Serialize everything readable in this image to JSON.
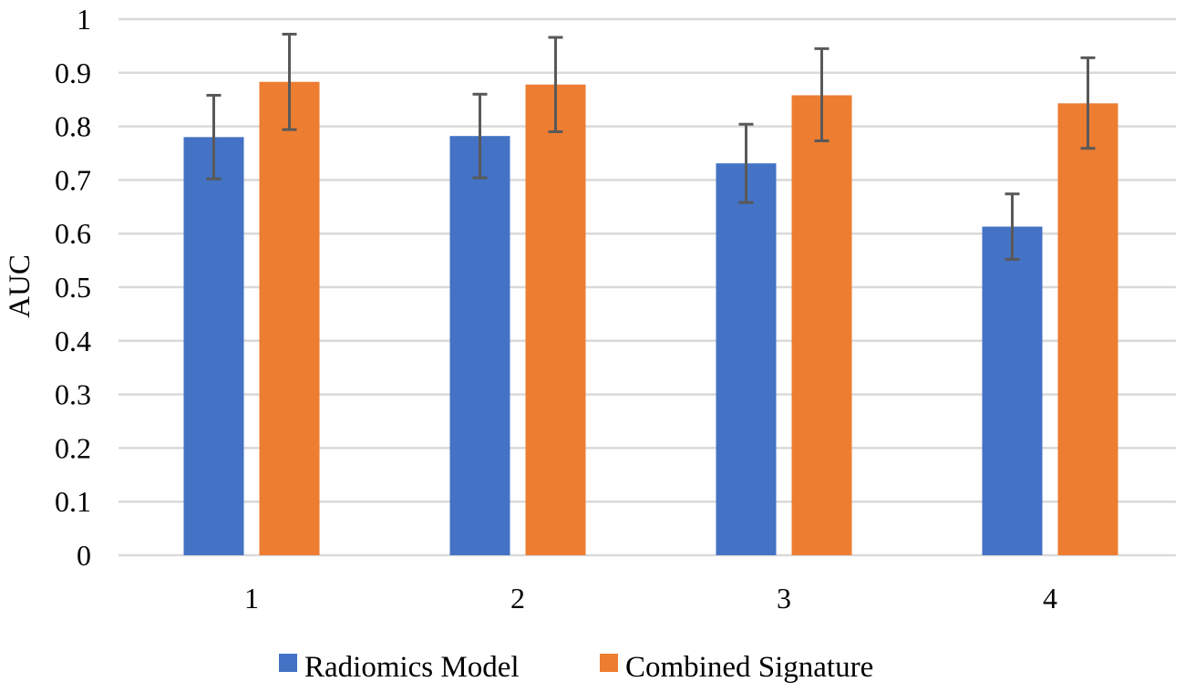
{
  "chart_data": {
    "type": "bar",
    "title": "",
    "xlabel": "",
    "ylabel": "AUC",
    "ylim": [
      0,
      1
    ],
    "yticks": [
      "0",
      "0.1",
      "0.2",
      "0.3",
      "0.4",
      "0.5",
      "0.6",
      "0.7",
      "0.8",
      "0.9",
      "1"
    ],
    "categories": [
      "1",
      "2",
      "3",
      "4"
    ],
    "grid": true,
    "legend_position": "bottom",
    "series": [
      {
        "name": "Radiomics Model",
        "color": "#4472C4",
        "values": [
          0.78,
          0.782,
          0.731,
          0.613
        ],
        "error_low": [
          0.702,
          0.704,
          0.658,
          0.552
        ],
        "error_high": [
          0.858,
          0.86,
          0.804,
          0.674
        ]
      },
      {
        "name": "Combined Signature",
        "color": "#ED7D31",
        "values": [
          0.883,
          0.878,
          0.858,
          0.843
        ],
        "error_low": [
          0.794,
          0.79,
          0.773,
          0.759
        ],
        "error_high": [
          0.972,
          0.966,
          0.945,
          0.928
        ]
      }
    ],
    "error_bar_color": "#595959",
    "gridline_color": "#D9D9D9"
  }
}
